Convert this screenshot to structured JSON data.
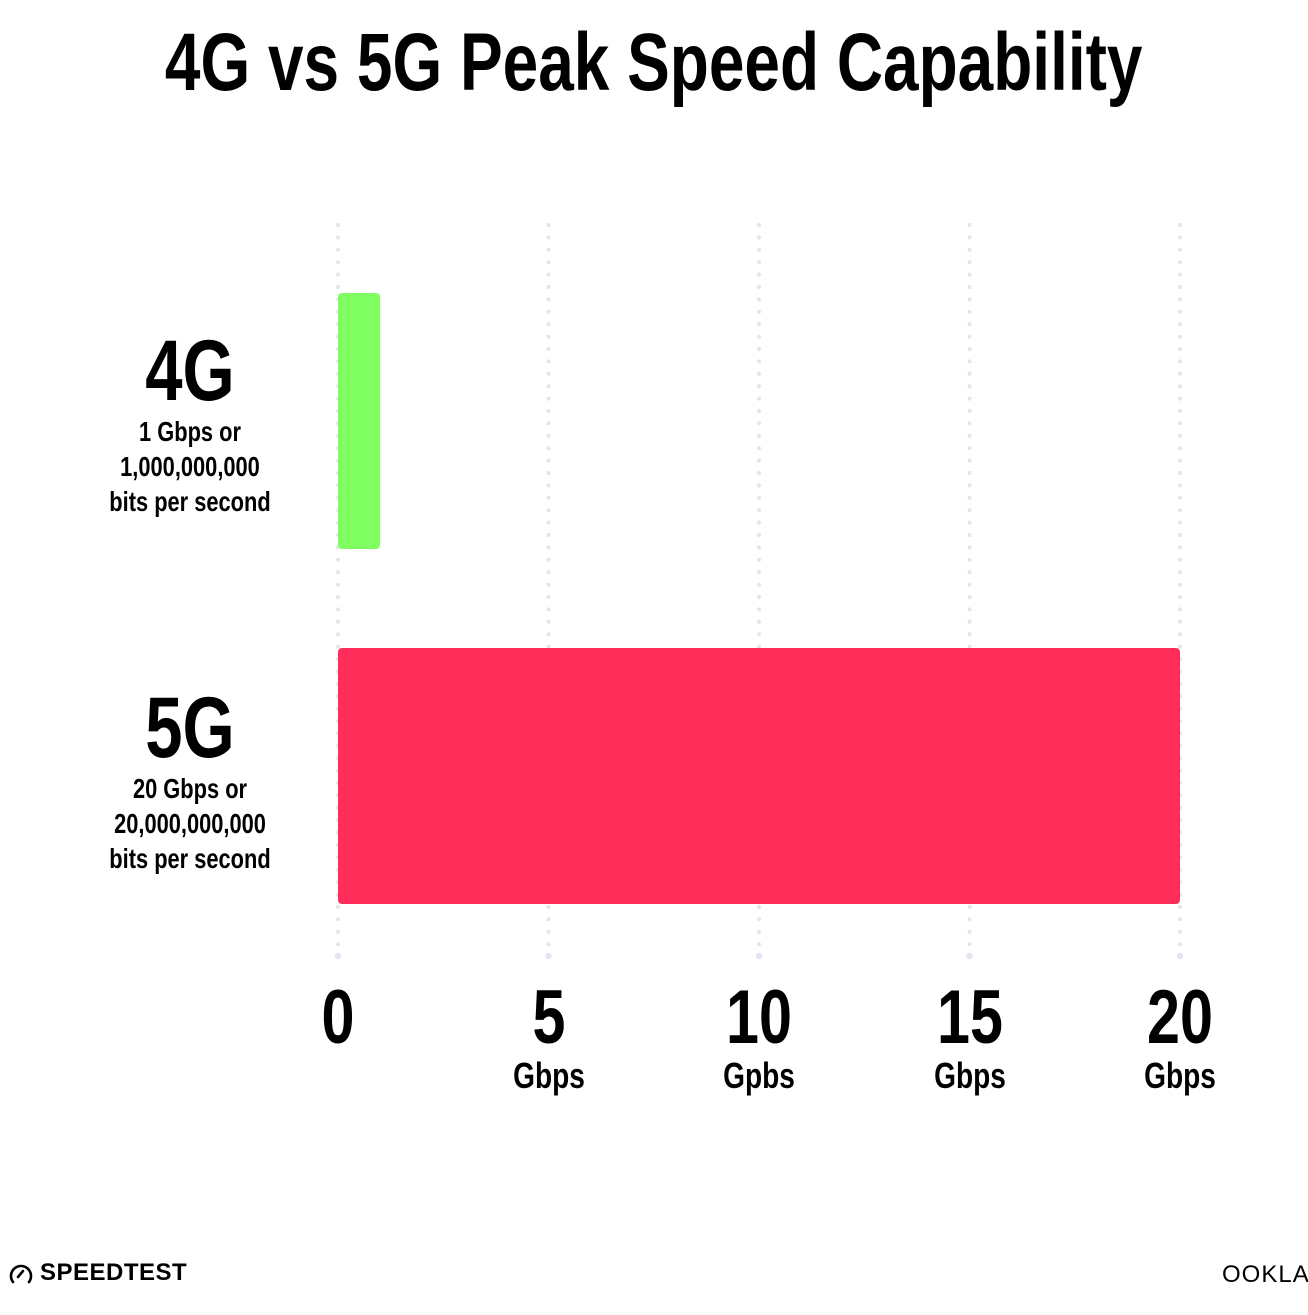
{
  "chart_data": {
    "type": "bar",
    "orientation": "horizontal",
    "title": "4G vs 5G Peak Speed Capability",
    "categories": [
      "4G",
      "5G"
    ],
    "category_notes": [
      [
        "1 Gbps or",
        "1,000,000,000",
        "bits per second"
      ],
      [
        "20 Gbps or",
        "20,000,000,000",
        "bits per second"
      ]
    ],
    "values": [
      1,
      20
    ],
    "colors": [
      "#80ff62",
      "#ff2d5a"
    ],
    "xlim": [
      0,
      20
    ],
    "xticks": [
      {
        "value": 0,
        "label": "0",
        "unit": ""
      },
      {
        "value": 5,
        "label": "5",
        "unit": "Gbps"
      },
      {
        "value": 10,
        "label": "10",
        "unit": "Gpbs"
      },
      {
        "value": 15,
        "label": "15",
        "unit": "Gbps"
      },
      {
        "value": 20,
        "label": "20",
        "unit": "Gbps"
      }
    ],
    "grid": "dotted vertical",
    "gridColor": "#e4e4f0"
  },
  "footer": {
    "left_logo": "SPEEDTEST",
    "right_logo": "OOKLA"
  }
}
